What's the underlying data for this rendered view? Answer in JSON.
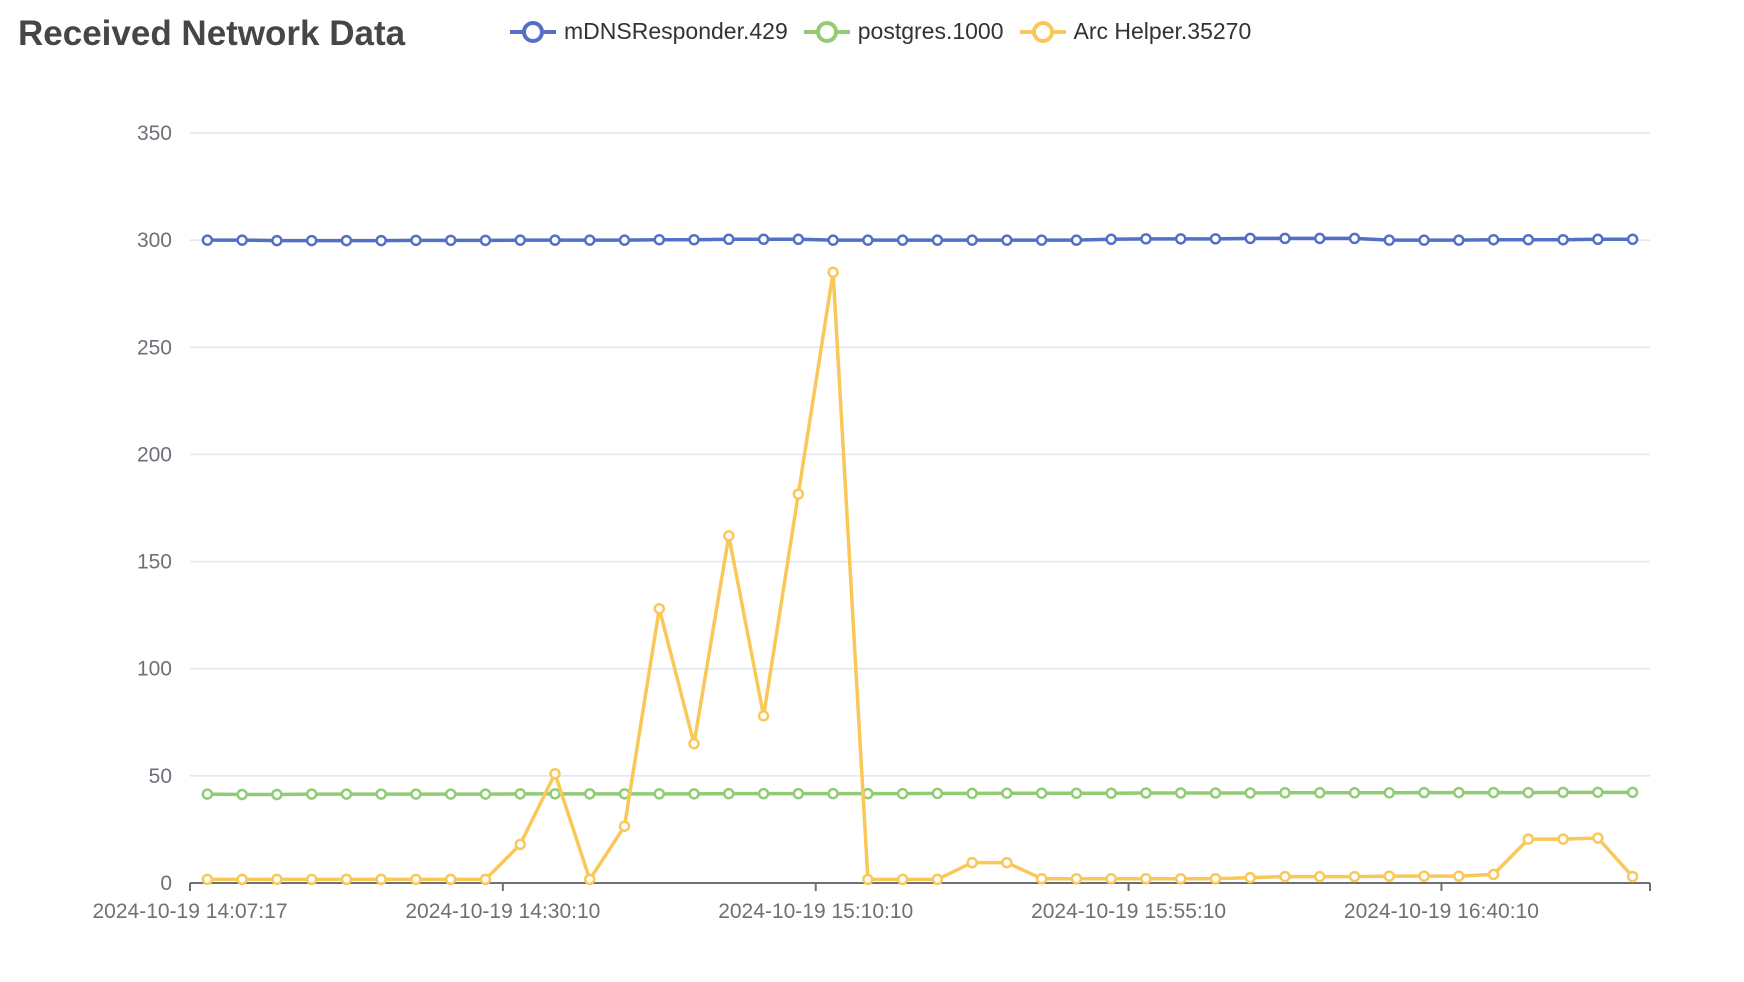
{
  "title": "Received Network Data",
  "chart_data": {
    "type": "line",
    "title": "Received Network Data",
    "ylim": [
      0,
      350
    ],
    "yticks": [
      0,
      50,
      100,
      150,
      200,
      250,
      300,
      350
    ],
    "x_tick_labels": [
      "2024-10-19 14:07:17",
      "2024-10-19 14:30:10",
      "2024-10-19 15:10:10",
      "2024-10-19 15:55:10",
      "2024-10-19 16:40:10"
    ],
    "x_tick_label_indices": [
      0,
      9,
      18,
      27,
      36
    ],
    "legend_position": "top",
    "grid": true,
    "point_count": 42,
    "series": [
      {
        "name": "mDNSResponder.429",
        "color": "#5470c6",
        "values": [
          300,
          300,
          299.8,
          299.8,
          299.8,
          299.8,
          299.9,
          299.9,
          299.9,
          300,
          300,
          300,
          300,
          300.2,
          300.2,
          300.4,
          300.4,
          300.4,
          300,
          300,
          300,
          300,
          300,
          300,
          300,
          300,
          300.4,
          300.6,
          300.6,
          300.6,
          300.8,
          300.8,
          300.8,
          300.8,
          300,
          300,
          300,
          300.2,
          300.2,
          300.2,
          300.4,
          300.4
        ]
      },
      {
        "name": "postgres.1000",
        "color": "#91cc75",
        "values": [
          41.5,
          41.3,
          41.3,
          41.5,
          41.5,
          41.5,
          41.5,
          41.5,
          41.5,
          41.6,
          41.6,
          41.6,
          41.6,
          41.6,
          41.6,
          41.7,
          41.7,
          41.7,
          41.7,
          41.7,
          41.7,
          41.8,
          41.8,
          41.9,
          41.9,
          41.9,
          41.9,
          42,
          42,
          42,
          42,
          42.1,
          42.1,
          42.1,
          42.1,
          42.2,
          42.2,
          42.2,
          42.2,
          42.3,
          42.3,
          42.3
        ]
      },
      {
        "name": "Arc Helper.35270",
        "color": "#fac858",
        "values": [
          1.7,
          1.7,
          1.7,
          1.7,
          1.7,
          1.7,
          1.7,
          1.7,
          1.7,
          18,
          51,
          1.7,
          26.5,
          128,
          65,
          162,
          78,
          181.5,
          285,
          1.7,
          1.7,
          1.7,
          9.5,
          9.5,
          2,
          2,
          2,
          2,
          2,
          2,
          2.5,
          3,
          3,
          3,
          3.2,
          3.2,
          3.2,
          4,
          20.5,
          20.5,
          21,
          3
        ]
      }
    ]
  }
}
